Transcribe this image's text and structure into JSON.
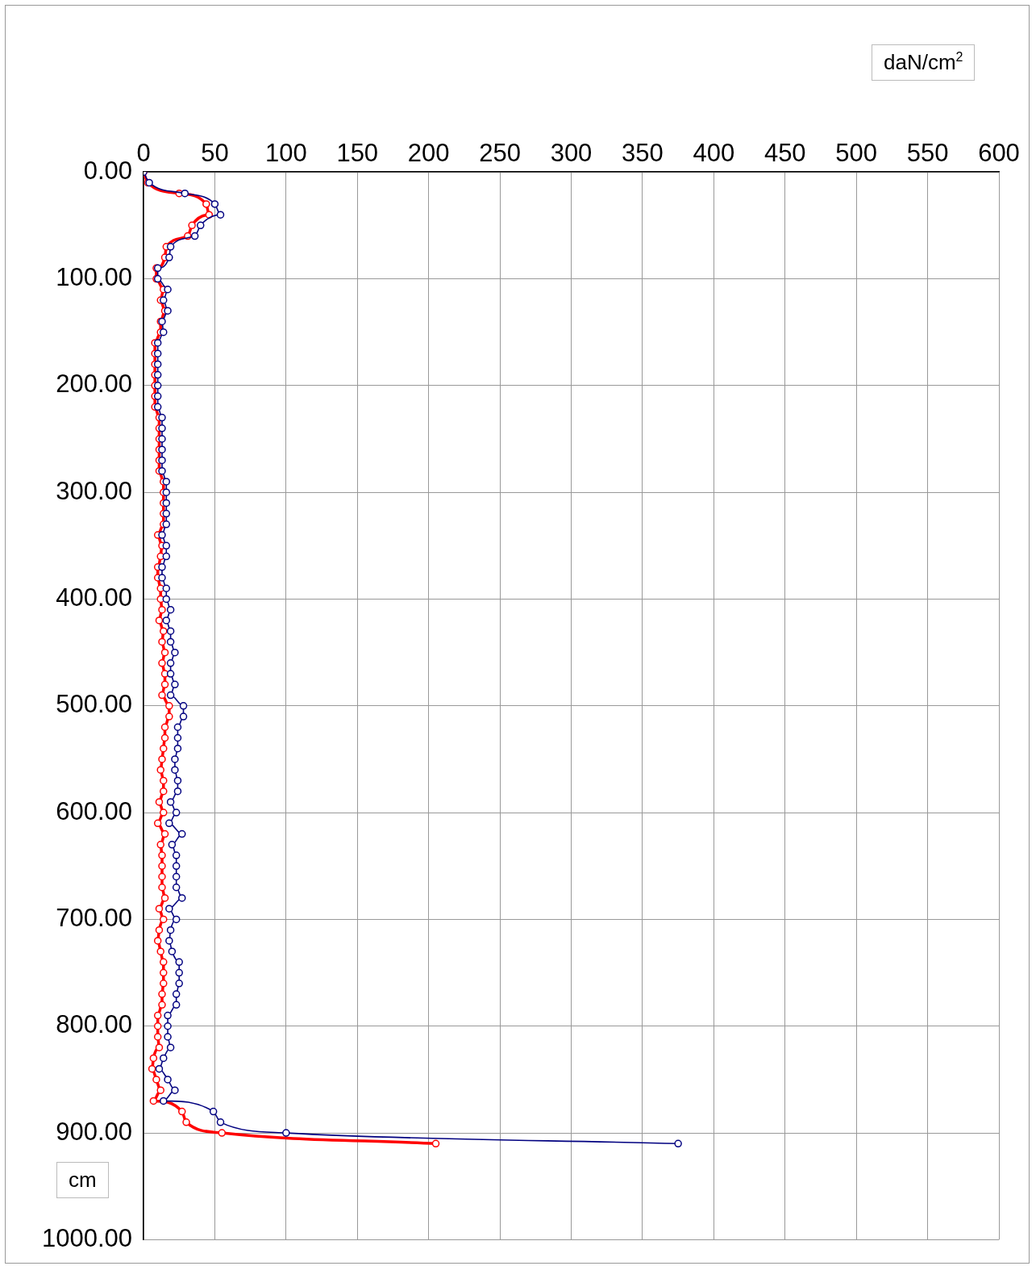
{
  "chart_data": {
    "type": "line",
    "xlabel": "daN/cm$^{2}$",
    "ylabel": "cm",
    "xlim": [
      0,
      600
    ],
    "xticks": [
      0,
      50,
      100,
      150,
      200,
      250,
      300,
      350,
      400,
      450,
      500,
      550,
      600
    ],
    "ylim": [
      1000,
      0
    ],
    "yticks": [
      {
        "value": 0,
        "label": "0.00"
      },
      {
        "value": 100,
        "label": "100.00"
      },
      {
        "value": 200,
        "label": "200.00"
      },
      {
        "value": 300,
        "label": "300.00"
      },
      {
        "value": 400,
        "label": "400.00"
      },
      {
        "value": 500,
        "label": "500.00"
      },
      {
        "value": 600,
        "label": "600.00"
      },
      {
        "value": 700,
        "label": "700.00"
      },
      {
        "value": 800,
        "label": "800.00"
      },
      {
        "value": 900,
        "label": "900.00"
      },
      {
        "value": 1000,
        "label": "1000.00"
      }
    ],
    "grid": true,
    "legend": false,
    "marker": "circle",
    "line_style": "solid",
    "series": [
      {
        "color": "#000080",
        "x": [
          0,
          4,
          29,
          50,
          54,
          40,
          36,
          19,
          18,
          10,
          10,
          17,
          14,
          17,
          13,
          14,
          10,
          10,
          10,
          10,
          10,
          10,
          10,
          13,
          13,
          13,
          13,
          13,
          13,
          16,
          16,
          16,
          16,
          16,
          13,
          16,
          16,
          13,
          13,
          16,
          16,
          19,
          16,
          19,
          19,
          22,
          19,
          19,
          22,
          19,
          28,
          28,
          24,
          24,
          24,
          22,
          22,
          24,
          24,
          19,
          23,
          18,
          27,
          20,
          23,
          23,
          23,
          23,
          27,
          18,
          23,
          19,
          18,
          20,
          25,
          25,
          25,
          23,
          23,
          17,
          17,
          17,
          19,
          14,
          11,
          17,
          22,
          14,
          49,
          54,
          100,
          375
        ],
        "values": [
          0,
          10,
          20,
          30,
          40,
          50,
          60,
          70,
          80,
          90,
          100,
          110,
          120,
          130,
          140,
          150,
          160,
          170,
          180,
          190,
          200,
          210,
          220,
          230,
          240,
          250,
          260,
          270,
          280,
          290,
          300,
          310,
          320,
          330,
          340,
          350,
          360,
          370,
          380,
          390,
          400,
          410,
          420,
          430,
          440,
          450,
          460,
          470,
          480,
          490,
          500,
          510,
          520,
          530,
          540,
          550,
          560,
          570,
          580,
          590,
          600,
          610,
          620,
          630,
          640,
          650,
          660,
          670,
          680,
          690,
          700,
          710,
          720,
          730,
          740,
          750,
          760,
          770,
          780,
          790,
          800,
          810,
          820,
          830,
          840,
          850,
          860,
          870,
          880,
          890,
          900,
          910
        ]
      },
      {
        "color": "#ff0000",
        "x": [
          0,
          3,
          25,
          44,
          46,
          34,
          31,
          16,
          15,
          9,
          9,
          14,
          12,
          15,
          12,
          12,
          8,
          8,
          8,
          8,
          8,
          8,
          8,
          11,
          11,
          11,
          11,
          11,
          11,
          14,
          14,
          14,
          14,
          14,
          10,
          13,
          12,
          10,
          10,
          12,
          12,
          13,
          11,
          14,
          13,
          15,
          13,
          15,
          15,
          13,
          18,
          18,
          15,
          15,
          14,
          13,
          12,
          14,
          14,
          11,
          14,
          10,
          15,
          12,
          13,
          13,
          13,
          13,
          15,
          11,
          14,
          11,
          10,
          12,
          14,
          14,
          14,
          13,
          13,
          10,
          10,
          10,
          11,
          7,
          6,
          9,
          12,
          7,
          27,
          30,
          55,
          205
        ],
        "values": [
          0,
          10,
          20,
          30,
          40,
          50,
          60,
          70,
          80,
          90,
          100,
          110,
          120,
          130,
          140,
          150,
          160,
          170,
          180,
          190,
          200,
          210,
          220,
          230,
          240,
          250,
          260,
          270,
          280,
          290,
          300,
          310,
          320,
          330,
          340,
          350,
          360,
          370,
          380,
          390,
          400,
          410,
          420,
          430,
          440,
          450,
          460,
          470,
          480,
          490,
          500,
          510,
          520,
          530,
          540,
          550,
          560,
          570,
          580,
          590,
          600,
          610,
          620,
          630,
          640,
          650,
          660,
          670,
          680,
          690,
          700,
          710,
          720,
          730,
          740,
          750,
          760,
          770,
          780,
          790,
          800,
          810,
          820,
          830,
          840,
          850,
          860,
          870,
          880,
          890,
          900,
          910
        ]
      }
    ]
  }
}
